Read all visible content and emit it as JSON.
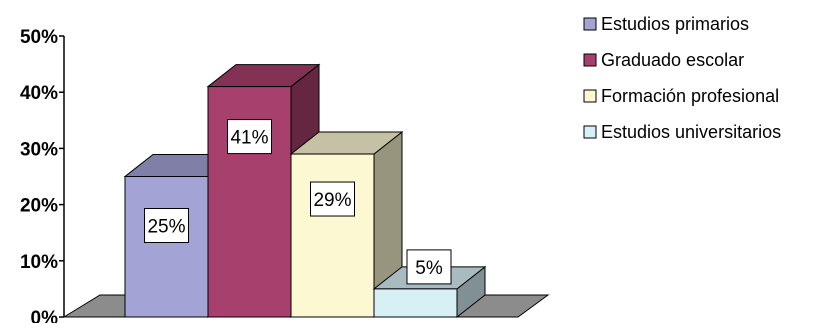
{
  "chart_data": {
    "type": "bar",
    "title": "",
    "xlabel": "",
    "ylabel": "",
    "ylim": [
      0,
      50
    ],
    "y_ticks": [
      "0%",
      "10%",
      "20%",
      "30%",
      "40%",
      "50%"
    ],
    "y_tick_values": [
      0,
      10,
      20,
      30,
      40,
      50
    ],
    "grid": false,
    "three_d": true,
    "legend_position": "top-right",
    "series": [
      {
        "name": "Estudios primarios",
        "value": 25,
        "label": "25%",
        "color": "#A3A3D6"
      },
      {
        "name": "Graduado escolar",
        "value": 41,
        "label": "41%",
        "color": "#A8406E"
      },
      {
        "name": "Formación profesional",
        "value": 29,
        "label": "29%",
        "color": "#FBF8D2"
      },
      {
        "name": "Estudios universitarios",
        "value": 5,
        "label": "5%",
        "color": "#D7F0F6"
      }
    ],
    "floor_color": "#8C8C8C"
  }
}
